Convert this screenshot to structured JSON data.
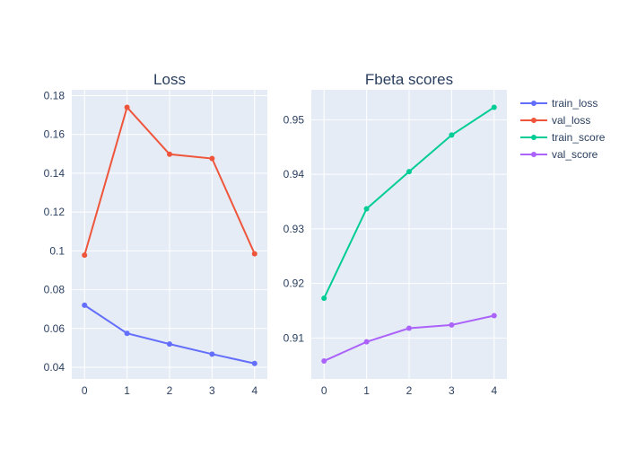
{
  "chart_data": [
    {
      "type": "line",
      "title": "Loss",
      "x": [
        0,
        1,
        2,
        3,
        4
      ],
      "xticks": [
        "0",
        "1",
        "2",
        "3",
        "4"
      ],
      "xlim": [
        -0.3,
        4.3
      ],
      "ylim": [
        0.034,
        0.183
      ],
      "yticks": [
        0.04,
        0.06,
        0.08,
        0.1,
        0.12,
        0.14,
        0.16,
        0.18
      ],
      "ytick_labels": [
        "0.04",
        "0.06",
        "0.08",
        "0.1",
        "0.12",
        "0.14",
        "0.16",
        "0.18"
      ],
      "series": [
        {
          "name": "train_loss",
          "values": [
            0.072,
            0.0575,
            0.052,
            0.0468,
            0.042
          ],
          "color": "#636efa"
        },
        {
          "name": "val_loss",
          "values": [
            0.0978,
            0.174,
            0.1498,
            0.1476,
            0.0985
          ],
          "color": "#EF553B"
        }
      ]
    },
    {
      "type": "line",
      "title": "Fbeta scores",
      "x": [
        0,
        1,
        2,
        3,
        4
      ],
      "xticks": [
        "0",
        "1",
        "2",
        "3",
        "4"
      ],
      "xlim": [
        -0.3,
        4.3
      ],
      "ylim": [
        0.9025,
        0.9555
      ],
      "yticks": [
        0.91,
        0.92,
        0.93,
        0.94,
        0.95
      ],
      "ytick_labels": [
        "0.91",
        "0.92",
        "0.93",
        "0.94",
        "0.95"
      ],
      "series": [
        {
          "name": "train_score",
          "values": [
            0.9173,
            0.9337,
            0.9405,
            0.9472,
            0.9523
          ],
          "color": "#00cc96"
        },
        {
          "name": "val_score",
          "values": [
            0.9058,
            0.9093,
            0.9118,
            0.9124,
            0.9141
          ],
          "color": "#ab63fa"
        }
      ]
    }
  ],
  "legend": {
    "position": "top-right",
    "items": [
      {
        "label": "train_loss",
        "color": "#636efa"
      },
      {
        "label": "val_loss",
        "color": "#EF553B"
      },
      {
        "label": "train_score",
        "color": "#00cc96"
      },
      {
        "label": "val_score",
        "color": "#ab63fa"
      }
    ]
  },
  "style": {
    "plot_bg": "#e5ecf6",
    "grid_color": "#ffffff",
    "text_color": "#2a3f5f"
  }
}
